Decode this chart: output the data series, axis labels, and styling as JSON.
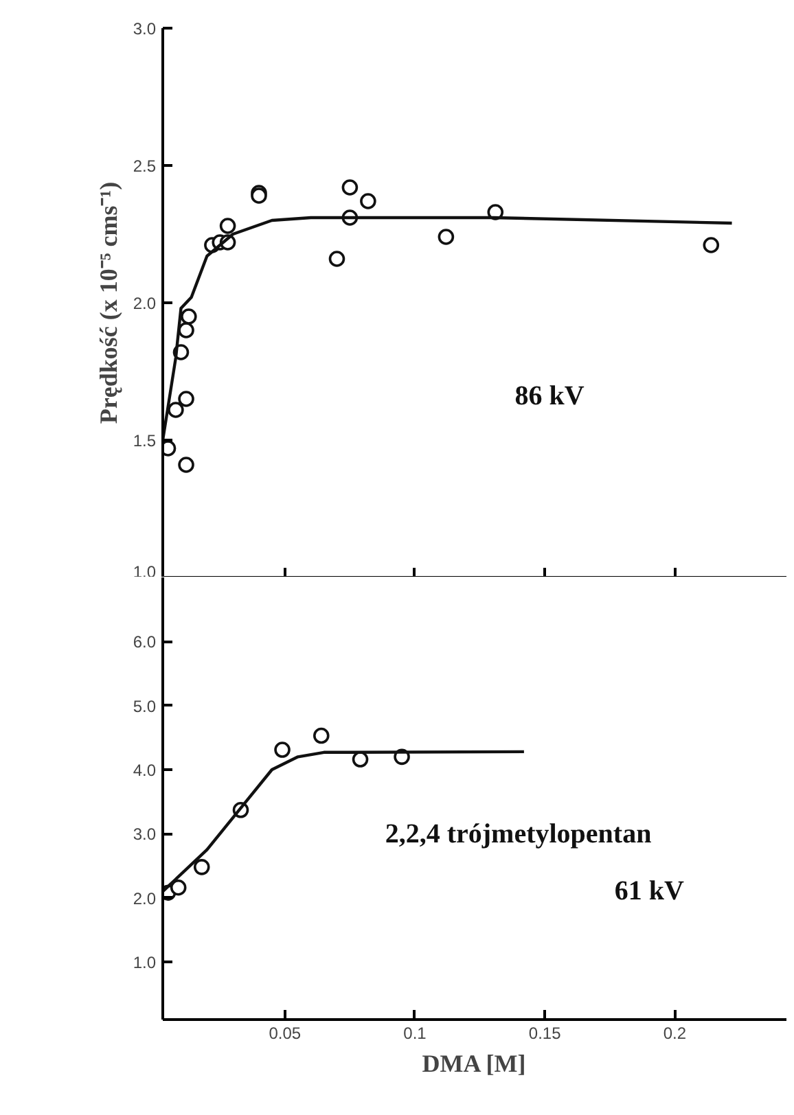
{
  "chart_data": [
    {
      "type": "scatter",
      "ylabel": "Prędkość (x 10⁻⁵ cms⁻¹)",
      "annotations": [
        "86 kV"
      ],
      "xlim": [
        0.003,
        0.243
      ],
      "ylim": [
        1.0,
        3.0
      ],
      "xticks": [
        {
          "value": 0.05,
          "label": null
        },
        {
          "value": 0.1,
          "label": null
        },
        {
          "value": 0.15,
          "label": null
        },
        {
          "value": 0.2,
          "label": null
        }
      ],
      "yticks": [
        {
          "value": 1.0,
          "label": "1.0"
        },
        {
          "value": 1.5,
          "label": "1.5"
        },
        {
          "value": 2.0,
          "label": "2.0"
        },
        {
          "value": 2.5,
          "label": "2.5"
        },
        {
          "value": 3.0,
          "label": "3.0"
        }
      ],
      "tick_labels": "y",
      "grid": false,
      "series": [
        {
          "marker": "circle",
          "color": "#111111",
          "x": [
            0.005,
            0.008,
            0.012,
            0.012,
            0.01,
            0.012,
            0.013,
            0.022,
            0.025,
            0.028,
            0.028,
            0.04,
            0.04,
            0.07,
            0.075,
            0.075,
            0.082,
            0.112,
            0.131,
            0.214
          ],
          "values": [
            1.47,
            1.61,
            1.65,
            1.41,
            1.82,
            1.9,
            1.95,
            2.21,
            2.22,
            2.22,
            2.28,
            2.4,
            2.39,
            2.16,
            2.42,
            2.31,
            2.37,
            2.24,
            2.33,
            2.21
          ]
        },
        {
          "type": "line",
          "marker": "none",
          "color": "#111111",
          "line_style": "solid",
          "x": [
            0.003,
            0.005,
            0.008,
            0.01,
            0.014,
            0.02,
            0.03,
            0.045,
            0.06,
            0.13,
            0.222
          ],
          "values": [
            1.5,
            1.62,
            1.8,
            1.98,
            2.02,
            2.17,
            2.25,
            2.3,
            2.31,
            2.31,
            2.29
          ]
        }
      ]
    },
    {
      "type": "scatter",
      "xlabel": "DMA [M]",
      "annotations": [
        "2,2,4 trójmetylopentan",
        "61 kV"
      ],
      "xlim": [
        0.003,
        0.243
      ],
      "ylim": [
        0.1,
        7.0
      ],
      "xticks": [
        0.05,
        0.1,
        0.15,
        0.2
      ],
      "yticks": [
        {
          "value": 1.0,
          "label": "1.0"
        },
        {
          "value": 2.0,
          "label": "2.0"
        },
        {
          "value": 3.0,
          "label": "3.0"
        },
        {
          "value": 4.0,
          "label": "4.0"
        },
        {
          "value": 5.0,
          "label": "5.0"
        },
        {
          "value": 6.0,
          "label": "6.0"
        }
      ],
      "grid": false,
      "series": [
        {
          "marker": "circle",
          "color": "#111111",
          "x": [
            0.005,
            0.009,
            0.018,
            0.033,
            0.049,
            0.064,
            0.079,
            0.095
          ],
          "values": [
            2.08,
            2.16,
            2.48,
            3.37,
            4.31,
            4.53,
            4.16,
            4.2
          ]
        },
        {
          "type": "line",
          "marker": "none",
          "color": "#111111",
          "line_style": "solid",
          "x": [
            0.003,
            0.02,
            0.035,
            0.045,
            0.055,
            0.065,
            0.142
          ],
          "values": [
            2.1,
            2.75,
            3.5,
            4.0,
            4.2,
            4.27,
            4.28
          ]
        }
      ]
    }
  ]
}
